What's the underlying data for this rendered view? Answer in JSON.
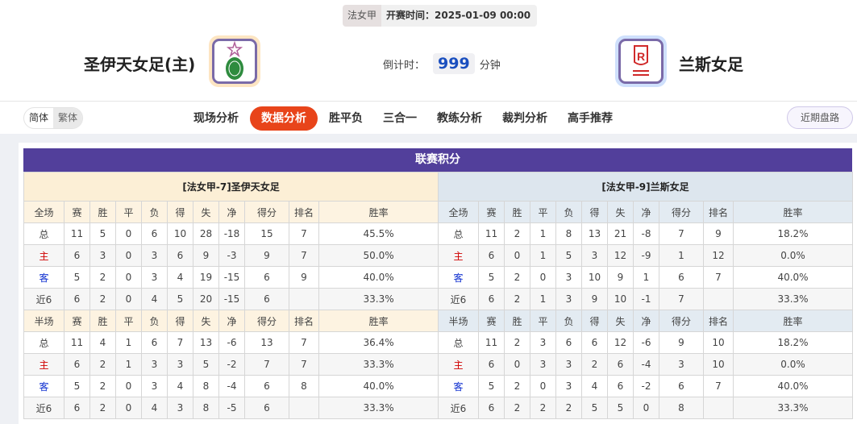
{
  "header": {
    "league": "法女甲",
    "kickoff": "开赛时间：2025-01-09 00:00",
    "home": "圣伊天女足(主)",
    "away": "兰斯女足",
    "countdown_label": "倒计时：",
    "countdown_value": "999",
    "countdown_unit": "分钟"
  },
  "nav": {
    "lang": [
      "简体",
      "繁体"
    ],
    "tabs": [
      "现场分析",
      "数据分析",
      "胜平负",
      "三合一",
      "教练分析",
      "裁判分析",
      "高手推荐"
    ],
    "active_tab": "数据分析",
    "recent": "近期盘路"
  },
  "section_title": "联赛积分",
  "columns": [
    "赛",
    "胜",
    "平",
    "负",
    "得",
    "失",
    "净",
    "得分",
    "排名",
    "胜率"
  ],
  "home_table": {
    "title": "[法女甲-7]圣伊天女足",
    "full": {
      "label": "全场",
      "rows": [
        [
          "总",
          "11",
          "5",
          "0",
          "6",
          "10",
          "28",
          "-18",
          "15",
          "7",
          "45.5%"
        ],
        [
          "主",
          "6",
          "3",
          "0",
          "3",
          "6",
          "9",
          "-3",
          "9",
          "7",
          "50.0%"
        ],
        [
          "客",
          "5",
          "2",
          "0",
          "3",
          "4",
          "19",
          "-15",
          "6",
          "9",
          "40.0%"
        ],
        [
          "近6",
          "6",
          "2",
          "0",
          "4",
          "5",
          "20",
          "-15",
          "6",
          "",
          "33.3%"
        ]
      ]
    },
    "half": {
      "label": "半场",
      "rows": [
        [
          "总",
          "11",
          "4",
          "1",
          "6",
          "7",
          "13",
          "-6",
          "13",
          "7",
          "36.4%"
        ],
        [
          "主",
          "6",
          "2",
          "1",
          "3",
          "3",
          "5",
          "-2",
          "7",
          "7",
          "33.3%"
        ],
        [
          "客",
          "5",
          "2",
          "0",
          "3",
          "4",
          "8",
          "-4",
          "6",
          "8",
          "40.0%"
        ],
        [
          "近6",
          "6",
          "2",
          "0",
          "4",
          "3",
          "8",
          "-5",
          "6",
          "",
          "33.3%"
        ]
      ]
    }
  },
  "away_table": {
    "title": "[法女甲-9]兰斯女足",
    "full": {
      "label": "全场",
      "rows": [
        [
          "总",
          "11",
          "2",
          "1",
          "8",
          "13",
          "21",
          "-8",
          "7",
          "9",
          "18.2%"
        ],
        [
          "主",
          "6",
          "0",
          "1",
          "5",
          "3",
          "12",
          "-9",
          "1",
          "12",
          "0.0%"
        ],
        [
          "客",
          "5",
          "2",
          "0",
          "3",
          "10",
          "9",
          "1",
          "6",
          "7",
          "40.0%"
        ],
        [
          "近6",
          "6",
          "2",
          "1",
          "3",
          "9",
          "10",
          "-1",
          "7",
          "",
          "33.3%"
        ]
      ]
    },
    "half": {
      "label": "半场",
      "rows": [
        [
          "总",
          "11",
          "2",
          "3",
          "6",
          "6",
          "12",
          "-6",
          "9",
          "10",
          "18.2%"
        ],
        [
          "主",
          "6",
          "0",
          "3",
          "3",
          "2",
          "6",
          "-4",
          "3",
          "10",
          "0.0%"
        ],
        [
          "客",
          "5",
          "2",
          "0",
          "3",
          "4",
          "6",
          "-2",
          "6",
          "7",
          "40.0%"
        ],
        [
          "近6",
          "6",
          "2",
          "2",
          "2",
          "5",
          "5",
          "0",
          "8",
          "",
          "33.3%"
        ]
      ]
    }
  },
  "colors": {
    "accent": "#e8441a",
    "title_bar": "#523f9b",
    "home_text": "#d00000",
    "away_text": "#1030d0"
  }
}
